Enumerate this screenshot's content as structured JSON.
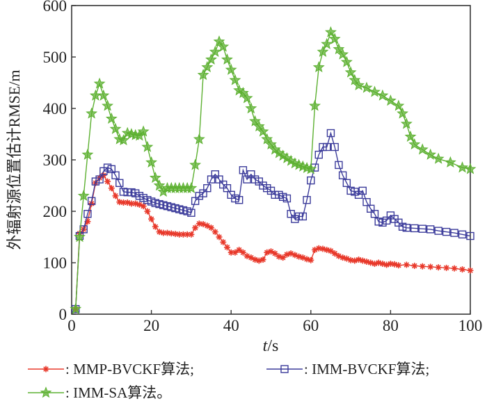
{
  "chart_data": {
    "type": "line",
    "title": "",
    "xlabel": {
      "var": "t",
      "unit": "/s"
    },
    "ylabel": "外辐射源位置估计RMSE/m",
    "xlim": [
      0,
      100
    ],
    "ylim": [
      0,
      600
    ],
    "xticks": [
      0,
      20,
      40,
      60,
      80,
      100
    ],
    "yticks": [
      0,
      100,
      200,
      300,
      400,
      500,
      600
    ],
    "grid": false,
    "legend_placement": "bottom",
    "series": [
      {
        "name": ": MMP-BVCKF算法;",
        "color": "#e8382a",
        "marker": "asterisk",
        "points": [
          [
            1,
            10
          ],
          [
            2,
            157
          ],
          [
            3,
            165
          ],
          [
            4,
            180
          ],
          [
            5,
            215
          ],
          [
            6,
            255
          ],
          [
            7,
            265
          ],
          [
            8,
            270
          ],
          [
            9,
            258
          ],
          [
            10,
            245
          ],
          [
            11,
            230
          ],
          [
            12,
            218
          ],
          [
            13,
            217
          ],
          [
            14,
            217
          ],
          [
            15,
            215
          ],
          [
            16,
            215
          ],
          [
            17,
            213
          ],
          [
            18,
            210
          ],
          [
            19,
            200
          ],
          [
            20,
            185
          ],
          [
            21,
            170
          ],
          [
            22,
            160
          ],
          [
            23,
            158
          ],
          [
            24,
            158
          ],
          [
            25,
            157
          ],
          [
            26,
            156
          ],
          [
            27,
            155
          ],
          [
            28,
            155
          ],
          [
            29,
            155
          ],
          [
            30,
            155
          ],
          [
            31,
            168
          ],
          [
            32,
            176
          ],
          [
            33,
            175
          ],
          [
            34,
            172
          ],
          [
            35,
            168
          ],
          [
            36,
            160
          ],
          [
            37,
            150
          ],
          [
            38,
            140
          ],
          [
            39,
            130
          ],
          [
            40,
            120
          ],
          [
            41,
            120
          ],
          [
            42,
            125
          ],
          [
            43,
            120
          ],
          [
            44,
            113
          ],
          [
            45,
            110
          ],
          [
            46,
            106
          ],
          [
            47,
            104
          ],
          [
            48,
            106
          ],
          [
            49,
            120
          ],
          [
            50,
            122
          ],
          [
            51,
            118
          ],
          [
            52,
            112
          ],
          [
            53,
            110
          ],
          [
            54,
            116
          ],
          [
            55,
            118
          ],
          [
            56,
            115
          ],
          [
            57,
            112
          ],
          [
            58,
            110
          ],
          [
            59,
            107
          ],
          [
            60,
            105
          ],
          [
            61,
            125
          ],
          [
            62,
            128
          ],
          [
            63,
            127
          ],
          [
            64,
            125
          ],
          [
            65,
            123
          ],
          [
            66,
            118
          ],
          [
            67,
            113
          ],
          [
            68,
            110
          ],
          [
            69,
            108
          ],
          [
            70,
            105
          ],
          [
            71,
            104
          ],
          [
            72,
            106
          ],
          [
            73,
            104
          ],
          [
            74,
            102
          ],
          [
            75,
            100
          ],
          [
            76,
            98
          ],
          [
            77,
            100
          ],
          [
            78,
            98
          ],
          [
            79,
            96
          ],
          [
            80,
            98
          ],
          [
            81,
            97
          ],
          [
            82,
            95
          ],
          [
            84,
            96
          ],
          [
            86,
            94
          ],
          [
            88,
            93
          ],
          [
            90,
            92
          ],
          [
            92,
            91
          ],
          [
            94,
            90
          ],
          [
            96,
            89
          ],
          [
            98,
            87
          ],
          [
            100,
            85
          ]
        ]
      },
      {
        "name": ": IMM-BVCKF算法;",
        "color": "#3a3a9a",
        "marker": "square",
        "points": [
          [
            1,
            10
          ],
          [
            2,
            152
          ],
          [
            3,
            165
          ],
          [
            4,
            195
          ],
          [
            5,
            220
          ],
          [
            6,
            258
          ],
          [
            7,
            262
          ],
          [
            8,
            278
          ],
          [
            9,
            285
          ],
          [
            10,
            282
          ],
          [
            11,
            270
          ],
          [
            12,
            255
          ],
          [
            13,
            238
          ],
          [
            14,
            237
          ],
          [
            15,
            237
          ],
          [
            16,
            235
          ],
          [
            17,
            230
          ],
          [
            18,
            226
          ],
          [
            19,
            222
          ],
          [
            20,
            219
          ],
          [
            21,
            216
          ],
          [
            22,
            214
          ],
          [
            23,
            212
          ],
          [
            24,
            210
          ],
          [
            25,
            208
          ],
          [
            26,
            206
          ],
          [
            27,
            204
          ],
          [
            28,
            202
          ],
          [
            29,
            200
          ],
          [
            30,
            197
          ],
          [
            31,
            220
          ],
          [
            32,
            230
          ],
          [
            33,
            235
          ],
          [
            34,
            245
          ],
          [
            35,
            262
          ],
          [
            36,
            272
          ],
          [
            37,
            262
          ],
          [
            38,
            252
          ],
          [
            39,
            245
          ],
          [
            40,
            232
          ],
          [
            41,
            225
          ],
          [
            42,
            222
          ],
          [
            43,
            280
          ],
          [
            44,
            262
          ],
          [
            45,
            272
          ],
          [
            46,
            262
          ],
          [
            47,
            258
          ],
          [
            48,
            250
          ],
          [
            49,
            245
          ],
          [
            50,
            240
          ],
          [
            51,
            232
          ],
          [
            52,
            232
          ],
          [
            53,
            228
          ],
          [
            54,
            225
          ],
          [
            55,
            195
          ],
          [
            56,
            185
          ],
          [
            57,
            190
          ],
          [
            58,
            190
          ],
          [
            59,
            222
          ],
          [
            60,
            260
          ],
          [
            61,
            285
          ],
          [
            62,
            310
          ],
          [
            63,
            325
          ],
          [
            64,
            325
          ],
          [
            65,
            352
          ],
          [
            66,
            325
          ],
          [
            67,
            290
          ],
          [
            68,
            270
          ],
          [
            69,
            255
          ],
          [
            70,
            240
          ],
          [
            71,
            238
          ],
          [
            72,
            232
          ],
          [
            73,
            240
          ],
          [
            74,
            218
          ],
          [
            75,
            205
          ],
          [
            76,
            195
          ],
          [
            77,
            180
          ],
          [
            78,
            178
          ],
          [
            79,
            182
          ],
          [
            80,
            192
          ],
          [
            81,
            185
          ],
          [
            82,
            178
          ],
          [
            83,
            170
          ],
          [
            84,
            168
          ],
          [
            86,
            167
          ],
          [
            88,
            166
          ],
          [
            90,
            165
          ],
          [
            92,
            162
          ],
          [
            94,
            160
          ],
          [
            96,
            158
          ],
          [
            98,
            155
          ],
          [
            100,
            152
          ]
        ]
      },
      {
        "name": ": IMM-SA算法。",
        "color": "#5cb030",
        "marker": "star",
        "points": [
          [
            1,
            10
          ],
          [
            2,
            150
          ],
          [
            3,
            230
          ],
          [
            4,
            310
          ],
          [
            5,
            390
          ],
          [
            6,
            425
          ],
          [
            7,
            448
          ],
          [
            8,
            425
          ],
          [
            9,
            405
          ],
          [
            10,
            380
          ],
          [
            11,
            360
          ],
          [
            12,
            340
          ],
          [
            13,
            338
          ],
          [
            14,
            352
          ],
          [
            15,
            350
          ],
          [
            16,
            348
          ],
          [
            17,
            347
          ],
          [
            18,
            355
          ],
          [
            19,
            325
          ],
          [
            20,
            295
          ],
          [
            21,
            265
          ],
          [
            22,
            250
          ],
          [
            23,
            238
          ],
          [
            24,
            245
          ],
          [
            25,
            245
          ],
          [
            26,
            245
          ],
          [
            27,
            245
          ],
          [
            28,
            245
          ],
          [
            29,
            245
          ],
          [
            30,
            245
          ],
          [
            31,
            290
          ],
          [
            32,
            340
          ],
          [
            33,
            465
          ],
          [
            34,
            480
          ],
          [
            35,
            495
          ],
          [
            36,
            510
          ],
          [
            37,
            530
          ],
          [
            38,
            520
          ],
          [
            39,
            495
          ],
          [
            40,
            475
          ],
          [
            41,
            455
          ],
          [
            42,
            435
          ],
          [
            43,
            430
          ],
          [
            44,
            420
          ],
          [
            45,
            400
          ],
          [
            46,
            375
          ],
          [
            47,
            365
          ],
          [
            48,
            355
          ],
          [
            49,
            340
          ],
          [
            50,
            330
          ],
          [
            51,
            320
          ],
          [
            52,
            313
          ],
          [
            53,
            308
          ],
          [
            54,
            303
          ],
          [
            55,
            298
          ],
          [
            56,
            293
          ],
          [
            57,
            290
          ],
          [
            58,
            287
          ],
          [
            59,
            284
          ],
          [
            60,
            282
          ],
          [
            61,
            405
          ],
          [
            62,
            480
          ],
          [
            63,
            510
          ],
          [
            64,
            525
          ],
          [
            65,
            548
          ],
          [
            66,
            535
          ],
          [
            67,
            515
          ],
          [
            68,
            505
          ],
          [
            69,
            490
          ],
          [
            70,
            470
          ],
          [
            71,
            455
          ],
          [
            72,
            445
          ],
          [
            74,
            440
          ],
          [
            76,
            432
          ],
          [
            78,
            425
          ],
          [
            80,
            415
          ],
          [
            82,
            405
          ],
          [
            83,
            390
          ],
          [
            84,
            370
          ],
          [
            85,
            345
          ],
          [
            86,
            330
          ],
          [
            88,
            320
          ],
          [
            90,
            310
          ],
          [
            92,
            302
          ],
          [
            95,
            295
          ],
          [
            98,
            285
          ],
          [
            100,
            282
          ]
        ]
      }
    ]
  }
}
